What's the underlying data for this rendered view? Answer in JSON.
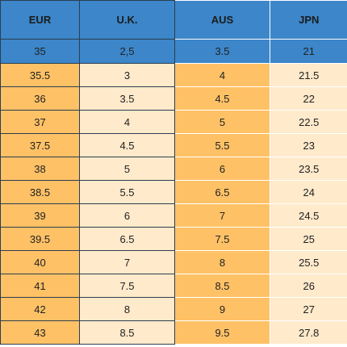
{
  "size_table": {
    "headers": {
      "eur": "EUR",
      "uk": "U.K.",
      "aus": "AUS",
      "jpn": "JPN"
    },
    "rows": [
      {
        "eur": "35",
        "uk": "2,5",
        "aus": "3.5",
        "jpn": "21"
      },
      {
        "eur": "35.5",
        "uk": "3",
        "aus": "4",
        "jpn": "21.5"
      },
      {
        "eur": "36",
        "uk": "3.5",
        "aus": "4.5",
        "jpn": "22"
      },
      {
        "eur": "37",
        "uk": "4",
        "aus": "5",
        "jpn": "22.5"
      },
      {
        "eur": "37.5",
        "uk": "4.5",
        "aus": "5.5",
        "jpn": "23"
      },
      {
        "eur": "38",
        "uk": "5",
        "aus": "6",
        "jpn": "23.5"
      },
      {
        "eur": "38.5",
        "uk": "5.5",
        "aus": "6.5",
        "jpn": "24"
      },
      {
        "eur": "39",
        "uk": "6",
        "aus": "7",
        "jpn": "24.5"
      },
      {
        "eur": "39.5",
        "uk": "6.5",
        "aus": "7.5",
        "jpn": "25"
      },
      {
        "eur": "40",
        "uk": "7",
        "aus": "8",
        "jpn": "25.5"
      },
      {
        "eur": "41",
        "uk": "7.5",
        "aus": "8.5",
        "jpn": "26"
      },
      {
        "eur": "42",
        "uk": "8",
        "aus": "9",
        "jpn": "27"
      },
      {
        "eur": "43",
        "uk": "8.5",
        "aus": "9.5",
        "jpn": "27.8"
      }
    ],
    "colors": {
      "header_blue": "#3c86c9",
      "orange": "#ffc166",
      "light_peach": "#ffeacb",
      "border_dark": "#2c3e50"
    }
  }
}
